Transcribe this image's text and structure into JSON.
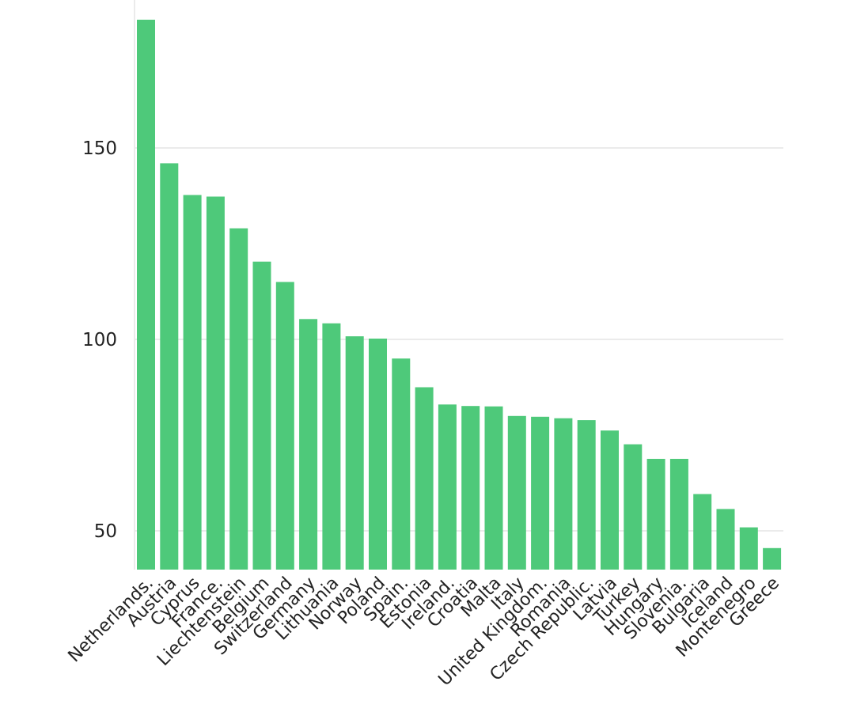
{
  "chart_data": {
    "type": "bar",
    "title": "",
    "xlabel": "",
    "ylabel": "",
    "categories": [
      "Netherlands.",
      "Austria",
      "Cyprus",
      "France.",
      "Liechtenstein",
      "Belgium",
      "Switzerland",
      "Germany",
      "Lithuania",
      "Norway",
      "Poland",
      "Spain.",
      "Estonia",
      "Ireland.",
      "Croatia",
      "Malta",
      "Italy",
      "United Kingdom.",
      "Romania",
      "Czech Republic.",
      "Latvia",
      "Turkey",
      "Hungary",
      "Slovenia.",
      "Bulgaria",
      "Iceland",
      "Montenegro",
      "Greece"
    ],
    "values": [
      183.5,
      146,
      137.7,
      137.3,
      129,
      120.3,
      115,
      105.3,
      104.2,
      100.8,
      100.2,
      95,
      87.5,
      83,
      82.6,
      82.5,
      80,
      79.8,
      79.4,
      78.9,
      76.2,
      72.6,
      68.8,
      68.8,
      59.6,
      55.7,
      50.9,
      45.5
    ],
    "ylim": [
      40,
      190
    ],
    "yticks": [
      50,
      100,
      150
    ],
    "grid": true,
    "legend": "none",
    "bar_color": "#4ec97a",
    "grid_color": "#ebebeb",
    "text_color": "#222222"
  }
}
